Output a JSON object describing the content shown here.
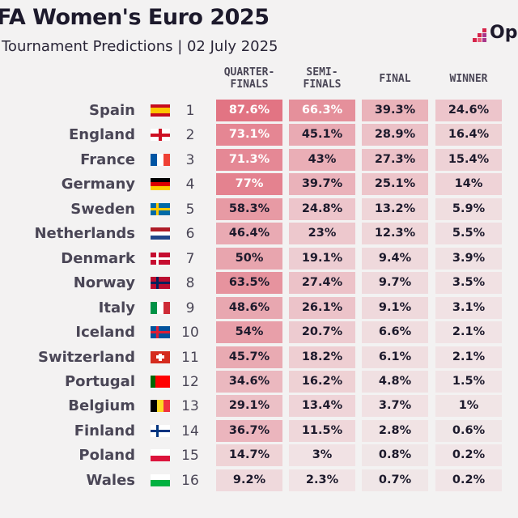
{
  "header": {
    "title": "FA Women's Euro 2025",
    "subtitle": "Tournament Predictions | 02 July 2025",
    "logo": "Opta"
  },
  "chart_data": {
    "type": "table",
    "columns": [
      "QUARTER-\nFINALS",
      "SEMI-\nFINALS",
      "FINAL",
      "WINNER"
    ],
    "rows": [
      {
        "team": "Spain",
        "rank": 1,
        "values": [
          "87.6%",
          "66.3%",
          "39.3%",
          "24.6%"
        ]
      },
      {
        "team": "England",
        "rank": 2,
        "values": [
          "73.1%",
          "45.1%",
          "28.9%",
          "16.4%"
        ]
      },
      {
        "team": "France",
        "rank": 3,
        "values": [
          "71.3%",
          "43%",
          "27.3%",
          "15.4%"
        ]
      },
      {
        "team": "Germany",
        "rank": 4,
        "values": [
          "77%",
          "39.7%",
          "25.1%",
          "14%"
        ]
      },
      {
        "team": "Sweden",
        "rank": 5,
        "values": [
          "58.3%",
          "24.8%",
          "13.2%",
          "5.9%"
        ]
      },
      {
        "team": "Netherlands",
        "rank": 6,
        "values": [
          "46.4%",
          "23%",
          "12.3%",
          "5.5%"
        ]
      },
      {
        "team": "Denmark",
        "rank": 7,
        "values": [
          "50%",
          "19.1%",
          "9.4%",
          "3.9%"
        ]
      },
      {
        "team": "Norway",
        "rank": 8,
        "values": [
          "63.5%",
          "27.4%",
          "9.7%",
          "3.5%"
        ]
      },
      {
        "team": "Italy",
        "rank": 9,
        "values": [
          "48.6%",
          "26.1%",
          "9.1%",
          "3.1%"
        ]
      },
      {
        "team": "Iceland",
        "rank": 10,
        "values": [
          "54%",
          "20.7%",
          "6.6%",
          "2.1%"
        ]
      },
      {
        "team": "Switzerland",
        "rank": 11,
        "values": [
          "45.7%",
          "18.2%",
          "6.1%",
          "2.1%"
        ]
      },
      {
        "team": "Portugal",
        "rank": 12,
        "values": [
          "34.6%",
          "16.2%",
          "4.8%",
          "1.5%"
        ]
      },
      {
        "team": "Belgium",
        "rank": 13,
        "values": [
          "29.1%",
          "13.4%",
          "3.7%",
          "1%"
        ]
      },
      {
        "team": "Finland",
        "rank": 14,
        "values": [
          "36.7%",
          "11.5%",
          "2.8%",
          "0.6%"
        ]
      },
      {
        "team": "Poland",
        "rank": 15,
        "values": [
          "14.7%",
          "3%",
          "0.8%",
          "0.2%"
        ]
      },
      {
        "team": "Wales",
        "rank": 16,
        "values": [
          "9.2%",
          "2.3%",
          "0.7%",
          "0.2%"
        ]
      }
    ]
  },
  "colors": {
    "cell": "#dc4a5e",
    "text_dark": "#1d1a2c",
    "text_light": "#ffffff"
  },
  "flags": {
    "Spain": [
      "#c60b1e",
      "#ffc400",
      "#ffc400",
      "#c60b1e"
    ],
    "England": "cross:#ffffff:#ce1124",
    "France": [
      "#0055a4",
      "#ffffff",
      "#ef4135"
    ],
    "Germany": "h:#000000:#dd0000:#ffce00",
    "Sweden": "nordic:#006aa7:#fecc00",
    "Netherlands": "h:#ae1c28:#ffffff:#21468b",
    "Denmark": "nordic:#c60c30:#ffffff",
    "Norway": "nordic:#ba0c2f:#00205b",
    "Italy": [
      "#009246",
      "#ffffff",
      "#ce2b37"
    ],
    "Iceland": "nordic:#02529c:#dc1e35",
    "Switzerland": "cross:#d52b1e:#ffffff",
    "Portugal": [
      "#006600",
      "#ff0000",
      "#ff0000"
    ],
    "Belgium": [
      "#000000",
      "#fdda24",
      "#ef3340"
    ],
    "Finland": "nordic:#ffffff:#003580",
    "Poland": "h:#ffffff:#dc143c",
    "Wales": "h:#ffffff:#00b140"
  }
}
